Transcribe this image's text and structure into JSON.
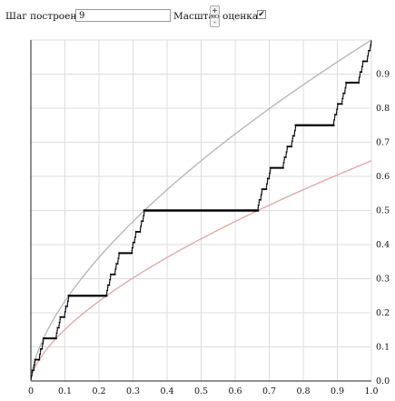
{
  "toolbar": {
    "step_label": "Шаг построения",
    "step_value": "9",
    "scale_label": "Масштаб",
    "zoom_in_label": "+",
    "zoom_out_label": "-",
    "estimate_label": "оценка",
    "estimate_checked": true
  },
  "chart_data": {
    "type": "line",
    "xlim": [
      0,
      1
    ],
    "ylim": [
      0,
      1
    ],
    "x_ticks": [
      "0",
      "0.1",
      "0.2",
      "0.3",
      "0.4",
      "0.5",
      "0.6",
      "0.7",
      "0.8",
      "0.9",
      "1.0"
    ],
    "y_ticks": [
      "0.0",
      "0.1",
      "0.2",
      "0.3",
      "0.4",
      "0.5",
      "0.6",
      "0.7",
      "0.8",
      "0.9"
    ],
    "grid": true,
    "series_colors": {
      "staircase": "#000000",
      "upper_bound": "#b3b3b3",
      "lower_bound": "#e0a5a5",
      "grid": "#dddddd"
    },
    "curves": {
      "upper_bound": "y = x^0.63",
      "lower_bound": "y = 0.5 * (1.5x)^0.63"
    },
    "step_level": 9
  }
}
